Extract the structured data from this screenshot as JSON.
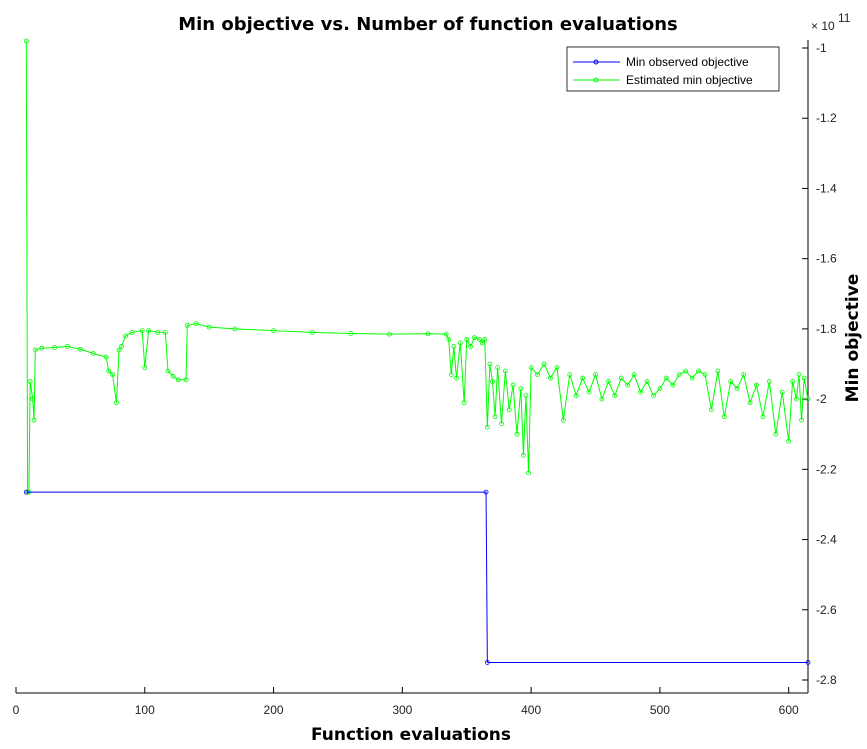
{
  "chart_data": {
    "type": "line",
    "title": "Min objective vs. Number of function evaluations",
    "xlabel": "Function evaluations",
    "ylabel": "Min objective",
    "y_exponent_base": "× 10",
    "y_exponent_power": "11",
    "xlim": [
      0,
      615
    ],
    "ylim": [
      -2.8,
      -1.0
    ],
    "y_scale_factor": 100000000000.0,
    "x_ticks": [
      0,
      100,
      200,
      300,
      400,
      500,
      600
    ],
    "y_ticks": [
      -1,
      -1.2,
      -1.4,
      -1.6,
      -1.8,
      -2,
      -2.2,
      -2.4,
      -2.6,
      -2.8
    ],
    "y_axis_position": "right",
    "grid": false,
    "legend_position": "top-right",
    "series": [
      {
        "name": "Min observed objective",
        "color": "#0000ff",
        "marker": "circle",
        "points": [
          [
            8,
            -2.265
          ],
          [
            365,
            -2.265
          ],
          [
            366,
            -2.75
          ],
          [
            615,
            -2.75
          ]
        ]
      },
      {
        "name": "Estimated min objective",
        "color": "#00ff00",
        "marker": "circle",
        "points": [
          [
            8,
            -0.98
          ],
          [
            9,
            -2.265
          ],
          [
            10,
            -2.265
          ],
          [
            11,
            -1.95
          ],
          [
            13,
            -2.0
          ],
          [
            14,
            -2.06
          ],
          [
            15,
            -1.86
          ],
          [
            20,
            -1.855
          ],
          [
            30,
            -1.853
          ],
          [
            40,
            -1.85
          ],
          [
            50,
            -1.858
          ],
          [
            60,
            -1.87
          ],
          [
            70,
            -1.88
          ],
          [
            72,
            -1.92
          ],
          [
            75,
            -1.93
          ],
          [
            78,
            -2.01
          ],
          [
            80,
            -1.86
          ],
          [
            82,
            -1.85
          ],
          [
            85,
            -1.82
          ],
          [
            90,
            -1.81
          ],
          [
            98,
            -1.805
          ],
          [
            100,
            -1.91
          ],
          [
            103,
            -1.805
          ],
          [
            110,
            -1.81
          ],
          [
            116,
            -1.81
          ],
          [
            118,
            -1.92
          ],
          [
            122,
            -1.935
          ],
          [
            126,
            -1.945
          ],
          [
            132,
            -1.945
          ],
          [
            133,
            -1.79
          ],
          [
            140,
            -1.785
          ],
          [
            150,
            -1.795
          ],
          [
            170,
            -1.8
          ],
          [
            200,
            -1.805
          ],
          [
            230,
            -1.81
          ],
          [
            260,
            -1.813
          ],
          [
            290,
            -1.815
          ],
          [
            320,
            -1.814
          ],
          [
            334,
            -1.815
          ],
          [
            336,
            -1.83
          ],
          [
            338,
            -1.93
          ],
          [
            340,
            -1.85
          ],
          [
            342,
            -1.94
          ],
          [
            345,
            -1.84
          ],
          [
            348,
            -2.01
          ],
          [
            350,
            -1.83
          ],
          [
            353,
            -1.85
          ],
          [
            356,
            -1.825
          ],
          [
            360,
            -1.83
          ],
          [
            362,
            -1.84
          ],
          [
            364,
            -1.83
          ],
          [
            366,
            -2.08
          ],
          [
            368,
            -1.9
          ],
          [
            370,
            -1.95
          ],
          [
            372,
            -2.05
          ],
          [
            374,
            -1.91
          ],
          [
            377,
            -2.07
          ],
          [
            380,
            -1.92
          ],
          [
            383,
            -2.03
          ],
          [
            386,
            -1.96
          ],
          [
            389,
            -2.1
          ],
          [
            392,
            -1.97
          ],
          [
            394,
            -2.16
          ],
          [
            396,
            -1.99
          ],
          [
            398,
            -2.21
          ],
          [
            400,
            -1.91
          ],
          [
            405,
            -1.93
          ],
          [
            410,
            -1.9
          ],
          [
            415,
            -1.94
          ],
          [
            420,
            -1.91
          ],
          [
            425,
            -2.06
          ],
          [
            430,
            -1.93
          ],
          [
            435,
            -1.99
          ],
          [
            440,
            -1.94
          ],
          [
            445,
            -1.98
          ],
          [
            450,
            -1.93
          ],
          [
            455,
            -2.0
          ],
          [
            460,
            -1.95
          ],
          [
            465,
            -1.99
          ],
          [
            470,
            -1.94
          ],
          [
            475,
            -1.96
          ],
          [
            480,
            -1.93
          ],
          [
            485,
            -1.98
          ],
          [
            490,
            -1.95
          ],
          [
            495,
            -1.99
          ],
          [
            500,
            -1.97
          ],
          [
            505,
            -1.94
          ],
          [
            510,
            -1.96
          ],
          [
            515,
            -1.93
          ],
          [
            520,
            -1.92
          ],
          [
            525,
            -1.94
          ],
          [
            530,
            -1.92
          ],
          [
            535,
            -1.93
          ],
          [
            540,
            -2.03
          ],
          [
            545,
            -1.92
          ],
          [
            550,
            -2.05
          ],
          [
            555,
            -1.95
          ],
          [
            560,
            -1.97
          ],
          [
            565,
            -1.93
          ],
          [
            570,
            -2.01
          ],
          [
            575,
            -1.96
          ],
          [
            580,
            -2.05
          ],
          [
            585,
            -1.95
          ],
          [
            590,
            -2.1
          ],
          [
            595,
            -1.98
          ],
          [
            600,
            -2.12
          ],
          [
            603,
            -1.95
          ],
          [
            606,
            -2.0
          ],
          [
            608,
            -1.93
          ],
          [
            610,
            -2.06
          ],
          [
            612,
            -1.94
          ],
          [
            615,
            -2.0
          ]
        ]
      }
    ]
  }
}
